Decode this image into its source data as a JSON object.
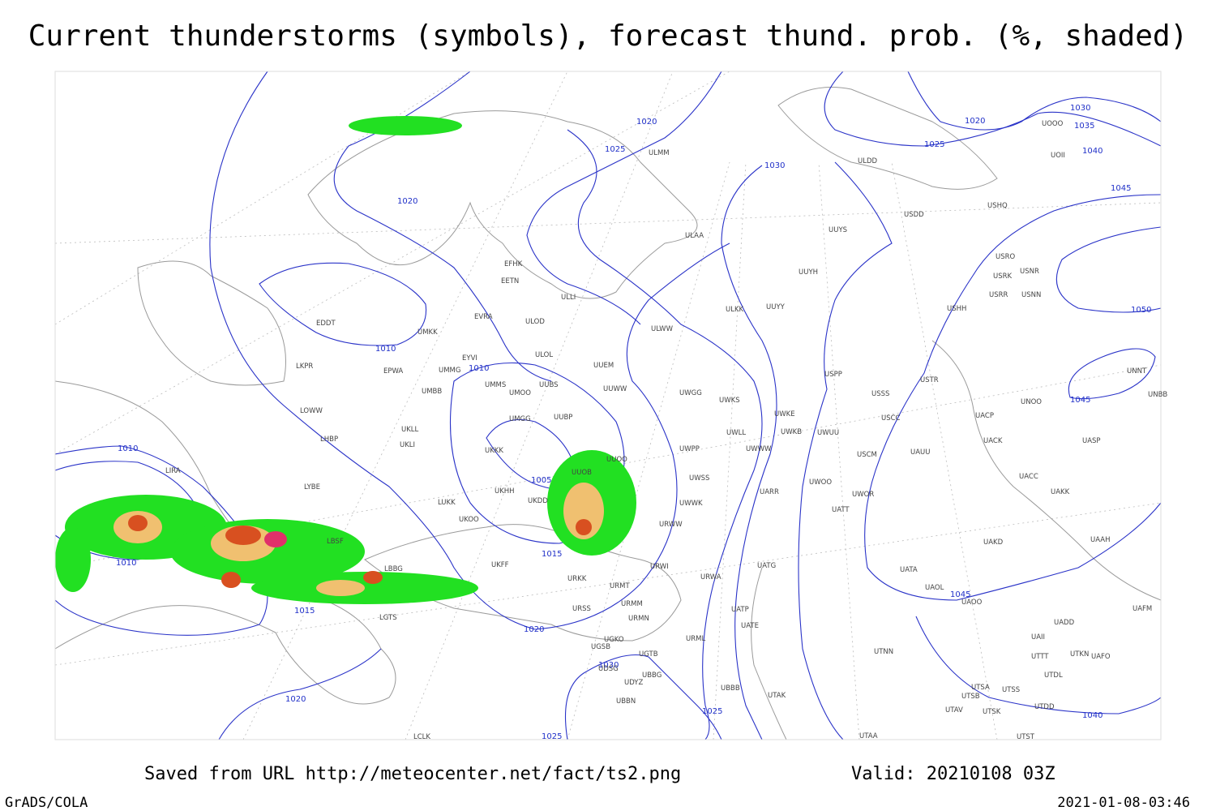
{
  "title": "Current thunderstorms (symbols), forecast thund. prob. (%, shaded)",
  "contour_labels": [
    "1020",
    "1025",
    "1030",
    "1020",
    "1020",
    "1025",
    "1030",
    "1035",
    "1040",
    "1045",
    "1050",
    "1010",
    "1010",
    "1045",
    "1010",
    "1005",
    "1015",
    "1010",
    "1015",
    "1045",
    "1020",
    "1030",
    "1020",
    "1025",
    "1040",
    "1025"
  ],
  "stations": [
    "ULDD",
    "USDD",
    "UUYS",
    "ULAA",
    "USRO",
    "USNR",
    "USRK",
    "UUYH",
    "USRR",
    "USNN",
    "USHH",
    "ULKK",
    "UUYY",
    "EFHK",
    "EETN",
    "ULLI",
    "EVRA",
    "ULOD",
    "ULWW",
    "EDDT",
    "UMKK",
    "EYVI",
    "ULOL",
    "UUEM",
    "LKPR",
    "EPWA",
    "UMMG",
    "UMMS",
    "UUBS",
    "USPP",
    "USTR",
    "UNNT",
    "UMBB",
    "UMOO",
    "UUWW",
    "UWGG",
    "UWKS",
    "USSS",
    "UNOO",
    "UNBB",
    "LOWW",
    "UMGG",
    "UUBP",
    "UWKE",
    "USCC",
    "UACP",
    "UKLL",
    "UWLL",
    "UWKB",
    "UWUU",
    "UACK",
    "UASP",
    "LHBP",
    "UKLI",
    "UWWW",
    "UWPP",
    "UKKK",
    "USCM",
    "UAUU",
    "UUOO",
    "LIRA",
    "UUOB",
    "UWSS",
    "UACC",
    "LYBE",
    "UKHH",
    "UKDD",
    "UARR",
    "UWOO",
    "UWOR",
    "UAKK",
    "LUKK",
    "UWWK",
    "UATT",
    "UKOO",
    "URWW",
    "LBSF",
    "UAKD",
    "UAAH",
    "UKFF",
    "URWI",
    "UATG",
    "UATA",
    "LBBG",
    "URKK",
    "UAOL",
    "UAOO",
    "URMT",
    "URWA",
    "URMM",
    "URSS",
    "UATP",
    "UAFM",
    "URMN",
    "UATE",
    "UADD",
    "LGTS",
    "UAII",
    "UGKO",
    "URML",
    "UGSB",
    "UGTB",
    "UTTT",
    "UTKN",
    "UAFO",
    "UTNN",
    "UDSG",
    "UBBG",
    "UTDL",
    "UDYZ",
    "UTSA",
    "UTSS",
    "UTSB",
    "UBBB",
    "UTAK",
    "UBBN",
    "UTDD",
    "UTAV",
    "UTSK",
    "UTAA",
    "UTST",
    "LCLK",
    "ULMM",
    "UOOO",
    "UOII",
    "USHQ"
  ],
  "footer": {
    "source": "Saved from URL http://meteocenter.net/fact/ts2.png",
    "valid": "Valid: 20210108 03Z",
    "software": "GrADS/COLA",
    "timestamp": "2021-01-08-03:46"
  }
}
